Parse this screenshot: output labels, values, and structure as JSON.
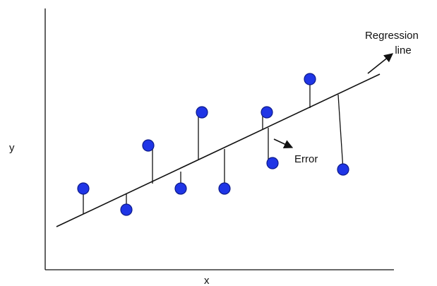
{
  "labels": {
    "y_axis": "y",
    "x_axis": "x",
    "regression_line_line1": "Regression",
    "regression_line_line2": "line",
    "error": "Error"
  },
  "colors": {
    "point_fill": "#1f35e6",
    "point_stroke": "#0c1a8a",
    "line": "#111111"
  }
}
